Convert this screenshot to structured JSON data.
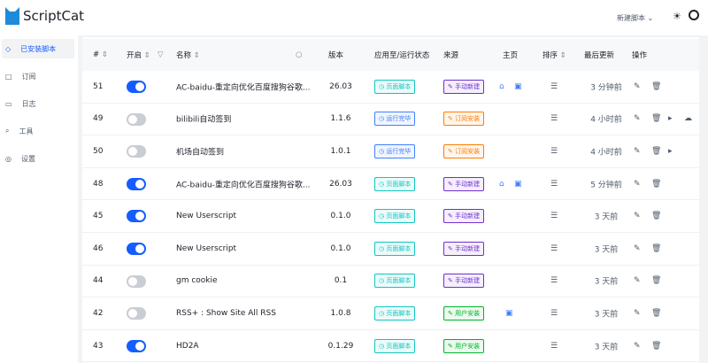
{
  "header": {
    "app_name": "ScriptCat",
    "new_script": "新建脚本",
    "theme_icon": "sun-icon",
    "github_icon": "github-icon"
  },
  "sidebar": {
    "items": [
      {
        "label": "已安装脚本",
        "icon": "code-icon",
        "active": true
      },
      {
        "label": "订阅",
        "icon": "subscribe-icon"
      },
      {
        "label": "日志",
        "icon": "log-icon"
      },
      {
        "label": "工具",
        "icon": "tool-icon"
      },
      {
        "label": "设置",
        "icon": "gear-icon"
      }
    ]
  },
  "table": {
    "columns": {
      "id": "#",
      "enabled": "开启",
      "name": "名称",
      "version": "版本",
      "status": "应用至/运行状态",
      "source": "来源",
      "homepage": "主页",
      "order": "排序",
      "updated": "最后更新",
      "actions": "操作"
    },
    "colors": {
      "page": "#0fc6c2",
      "run": "#4080ff",
      "manual": "#722ed1",
      "subscribe": "#ff7d00",
      "user": "#00b42a",
      "toggle_on": "#165dff"
    },
    "rows": [
      {
        "id": "51",
        "enabled": true,
        "name": "AC-baidu-重定向优化百度搜狗谷歌...",
        "version": "26.03",
        "status": "页面脚本",
        "status_type": "page",
        "source": "手动新建",
        "source_type": "manual",
        "home": true,
        "bug": true,
        "updated": "3 分钟前",
        "run": false,
        "cloud": false
      },
      {
        "id": "49",
        "enabled": false,
        "name": "bilibili自动签到",
        "version": "1.1.6",
        "status": "运行完毕",
        "status_type": "run",
        "source": "订阅安装",
        "source_type": "subscribe",
        "home": false,
        "bug": false,
        "updated": "4 小时前",
        "run": true,
        "cloud": true
      },
      {
        "id": "50",
        "enabled": false,
        "name": "机场自动签到",
        "version": "1.0.1",
        "status": "运行完毕",
        "status_type": "run",
        "source": "订阅安装",
        "source_type": "subscribe",
        "home": false,
        "bug": false,
        "updated": "4 小时前",
        "run": true,
        "cloud": false
      },
      {
        "id": "48",
        "enabled": true,
        "name": "AC-baidu-重定向优化百度搜狗谷歌...",
        "version": "26.03",
        "status": "页面脚本",
        "status_type": "page",
        "source": "手动新建",
        "source_type": "manual",
        "home": true,
        "bug": true,
        "updated": "5 分钟前",
        "run": false,
        "cloud": false
      },
      {
        "id": "45",
        "enabled": true,
        "name": "New Userscript",
        "version": "0.1.0",
        "status": "页面脚本",
        "status_type": "page",
        "source": "手动新建",
        "source_type": "manual",
        "home": false,
        "bug": false,
        "updated": "3 天前",
        "run": false,
        "cloud": false
      },
      {
        "id": "46",
        "enabled": true,
        "name": "New Userscript",
        "version": "0.1.0",
        "status": "页面脚本",
        "status_type": "page",
        "source": "手动新建",
        "source_type": "manual",
        "home": false,
        "bug": false,
        "updated": "3 天前",
        "run": false,
        "cloud": false
      },
      {
        "id": "44",
        "enabled": false,
        "name": "gm cookie",
        "version": "0.1",
        "status": "页面脚本",
        "status_type": "page",
        "source": "手动新建",
        "source_type": "manual",
        "home": false,
        "bug": false,
        "updated": "3 天前",
        "run": false,
        "cloud": false
      },
      {
        "id": "42",
        "enabled": false,
        "name": "RSS+ : Show Site All RSS",
        "version": "1.0.8",
        "status": "页面脚本",
        "status_type": "page",
        "source": "用户安装",
        "source_type": "user",
        "home": false,
        "bug": true,
        "updated": "3 天前",
        "run": false,
        "cloud": false
      },
      {
        "id": "43",
        "enabled": true,
        "name": "HD2A",
        "version": "0.1.29",
        "status": "页面脚本",
        "status_type": "page",
        "source": "用户安装",
        "source_type": "user",
        "home": false,
        "bug": false,
        "updated": "3 天前",
        "run": false,
        "cloud": false
      }
    ]
  }
}
